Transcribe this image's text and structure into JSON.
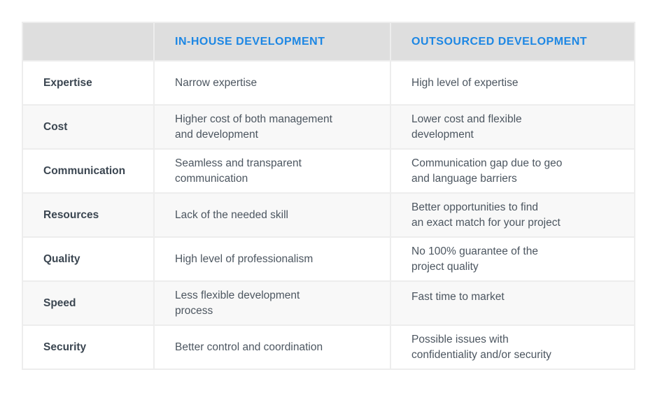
{
  "accent_color": "#1d87e4",
  "header_bg_color": "#dedede",
  "grid_color": "#ededed",
  "alt_row_color": "#f8f8f8",
  "chart_data": {
    "type": "table",
    "title": "",
    "columns": [
      "",
      "IN-HOUSE DEVELOPMENT",
      "OUTSOURCED DEVELOPMENT"
    ],
    "rows": [
      {
        "label": "Expertise",
        "in_house": "Narrow expertise",
        "outsourced": "High level of expertise"
      },
      {
        "label": "Cost",
        "in_house": "Higher cost of both management\nand development",
        "outsourced": "Lower cost and flexible\ndevelopment"
      },
      {
        "label": "Communication",
        "in_house": "Seamless and transparent\ncommunication",
        "outsourced": "Communication gap due to geo\nand language barriers"
      },
      {
        "label": "Resources",
        "in_house": "Lack of the needed skill",
        "outsourced": "Better opportunities to find\nan exact match for your project"
      },
      {
        "label": "Quality",
        "in_house": "High level of professionalism",
        "outsourced": "No 100% guarantee of the\nproject quality"
      },
      {
        "label": "Speed",
        "in_house": "Less flexible development\nprocess",
        "outsourced": "Fast time to market"
      },
      {
        "label": "Security",
        "in_house": "Better control and coordination",
        "outsourced": "Possible issues with\nconfidentiality and/or security"
      }
    ]
  }
}
